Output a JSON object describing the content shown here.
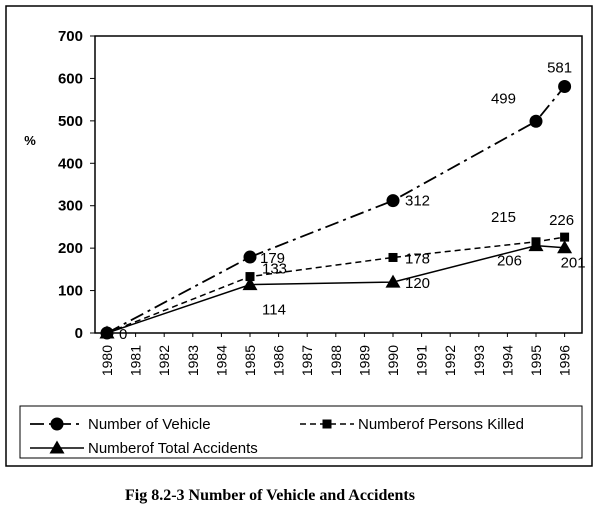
{
  "chart_data": {
    "type": "line",
    "title": "",
    "ylabel": "%",
    "xlabel": "",
    "ylim": [
      0,
      700
    ],
    "yticks": [
      "0",
      "100",
      "200",
      "300",
      "400",
      "500",
      "600",
      "700"
    ],
    "categories": [
      "1980",
      "1981",
      "1982",
      "1983",
      "1984",
      "1985",
      "1986",
      "1987",
      "1988",
      "1989",
      "1990",
      "1991",
      "1992",
      "1993",
      "1994",
      "1995",
      "1996"
    ],
    "grid": false,
    "legend_position": "bottom",
    "series": [
      {
        "name": "Number of Vehicle",
        "marker": "circle",
        "line_style": "dash-dot",
        "points": [
          {
            "x": "1980",
            "y": 0,
            "label": "0"
          },
          {
            "x": "1985",
            "y": 179,
            "label": "179"
          },
          {
            "x": "1990",
            "y": 312,
            "label": "312"
          },
          {
            "x": "1995",
            "y": 499,
            "label": "499"
          },
          {
            "x": "1996",
            "y": 581,
            "label": "581"
          }
        ]
      },
      {
        "name": "Numberof Persons Killed",
        "marker": "square",
        "line_style": "dashed",
        "points": [
          {
            "x": "1980",
            "y": 0,
            "label": ""
          },
          {
            "x": "1985",
            "y": 133,
            "label": "133"
          },
          {
            "x": "1990",
            "y": 178,
            "label": "178"
          },
          {
            "x": "1995",
            "y": 215,
            "label": "215"
          },
          {
            "x": "1996",
            "y": 226,
            "label": "226"
          }
        ]
      },
      {
        "name": "Numberof Total Accidents",
        "marker": "triangle",
        "line_style": "solid",
        "points": [
          {
            "x": "1980",
            "y": 0,
            "label": ""
          },
          {
            "x": "1985",
            "y": 114,
            "label": "114"
          },
          {
            "x": "1990",
            "y": 120,
            "label": "120"
          },
          {
            "x": "1995",
            "y": 206,
            "label": "206"
          },
          {
            "x": "1996",
            "y": 201,
            "label": "201"
          }
        ]
      }
    ]
  },
  "caption": "Fig 8.2-3 Number of Vehicle and Accidents"
}
